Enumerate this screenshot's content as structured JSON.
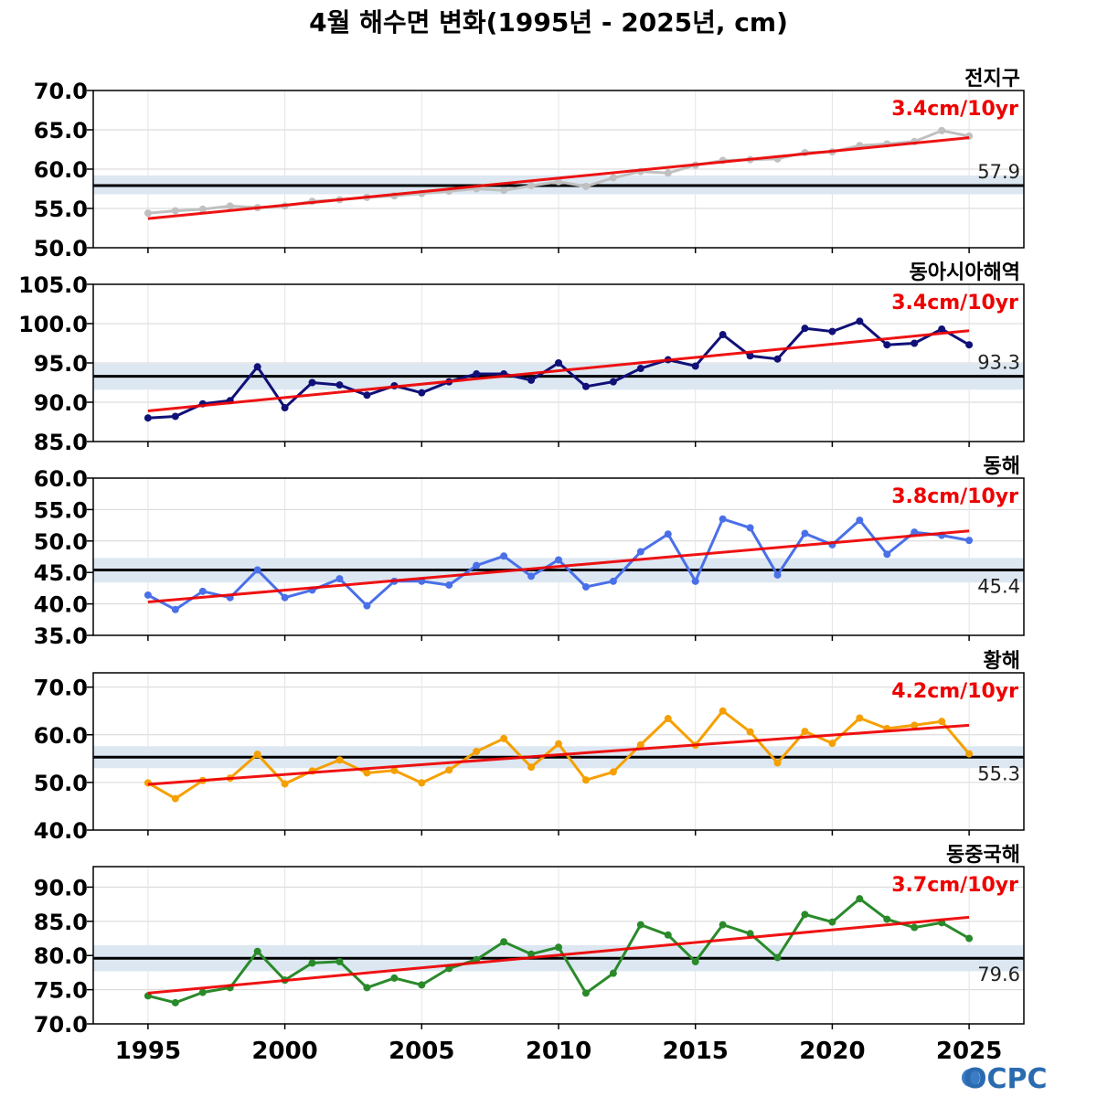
{
  "title": "4월 해수면 변화(1995년 - 2025년, cm)",
  "logo": "OCPC",
  "colors": {
    "trend": "#ee0000",
    "mean": "#000000",
    "band": "#dce7f2"
  },
  "chart_data": [
    {
      "type": "line",
      "name": "전지구",
      "trend_label": "3.4cm/10yr",
      "mean_label": "57.9",
      "mean": 57.9,
      "band": [
        56.8,
        59.2
      ],
      "color": "#c0c0c0",
      "ylim": [
        50,
        70
      ],
      "yticks": [
        50,
        55,
        60,
        65,
        70
      ],
      "ytick_labels": [
        "50.0",
        "55.0",
        "60.0",
        "65.0",
        "70.0"
      ],
      "trend": [
        53.7,
        64.0
      ],
      "x": [
        1995,
        1996,
        1997,
        1998,
        1999,
        2000,
        2001,
        2002,
        2003,
        2004,
        2005,
        2006,
        2007,
        2008,
        2009,
        2010,
        2011,
        2012,
        2013,
        2014,
        2015,
        2016,
        2017,
        2018,
        2019,
        2020,
        2021,
        2022,
        2023,
        2024,
        2025
      ],
      "values": [
        54.4,
        54.7,
        54.9,
        55.3,
        55.1,
        55.3,
        55.9,
        56.1,
        56.4,
        56.6,
        56.9,
        57.2,
        57.5,
        57.3,
        57.9,
        58.4,
        57.8,
        58.9,
        59.7,
        59.5,
        60.5,
        61.1,
        61.2,
        61.3,
        62.1,
        62.2,
        63.0,
        63.2,
        63.5,
        64.9,
        64.2
      ]
    },
    {
      "type": "line",
      "name": "동아시아해역",
      "trend_label": "3.4cm/10yr",
      "mean_label": "93.3",
      "mean": 93.3,
      "band": [
        91.6,
        94.9
      ],
      "color": "#101078",
      "ylim": [
        85,
        105
      ],
      "yticks": [
        85,
        90,
        95,
        100,
        105
      ],
      "ytick_labels": [
        "85.0",
        "90.0",
        "95.0",
        "100.0",
        "105.0"
      ],
      "trend": [
        88.9,
        99.1
      ],
      "x": [
        1995,
        1996,
        1997,
        1998,
        1999,
        2000,
        2001,
        2002,
        2003,
        2004,
        2005,
        2006,
        2007,
        2008,
        2009,
        2010,
        2011,
        2012,
        2013,
        2014,
        2015,
        2016,
        2017,
        2018,
        2019,
        2020,
        2021,
        2022,
        2023,
        2024,
        2025
      ],
      "values": [
        88.0,
        88.2,
        89.8,
        90.2,
        94.5,
        89.3,
        92.5,
        92.2,
        90.9,
        92.1,
        91.2,
        92.6,
        93.6,
        93.6,
        92.8,
        95.0,
        92.0,
        92.6,
        94.3,
        95.4,
        94.6,
        98.6,
        95.9,
        95.5,
        99.4,
        99.0,
        100.3,
        97.3,
        97.5,
        99.3,
        97.3
      ]
    },
    {
      "type": "line",
      "name": "동해",
      "trend_label": "3.8cm/10yr",
      "mean_label": "45.4",
      "mean": 45.4,
      "band": [
        43.4,
        47.3
      ],
      "color": "#4a70e8",
      "ylim": [
        35,
        60
      ],
      "yticks": [
        35,
        40,
        45,
        50,
        55,
        60
      ],
      "ytick_labels": [
        "35.0",
        "40.0",
        "45.0",
        "50.0",
        "55.0",
        "60.0"
      ],
      "trend": [
        40.3,
        51.6
      ],
      "x": [
        1995,
        1996,
        1997,
        1998,
        1999,
        2000,
        2001,
        2002,
        2003,
        2004,
        2005,
        2006,
        2007,
        2008,
        2009,
        2010,
        2011,
        2012,
        2013,
        2014,
        2015,
        2016,
        2017,
        2018,
        2019,
        2020,
        2021,
        2022,
        2023,
        2024,
        2025
      ],
      "values": [
        41.4,
        39.1,
        42.0,
        41.0,
        45.4,
        41.0,
        42.2,
        44.0,
        39.7,
        43.6,
        43.6,
        43.0,
        46.1,
        47.6,
        44.4,
        47.0,
        42.7,
        43.6,
        48.3,
        51.1,
        43.6,
        53.5,
        52.1,
        44.6,
        51.2,
        49.4,
        53.3,
        47.9,
        51.4,
        50.9,
        50.1
      ]
    },
    {
      "type": "line",
      "name": "황해",
      "trend_label": "4.2cm/10yr",
      "mean_label": "55.3",
      "mean": 55.3,
      "band": [
        53.0,
        57.6
      ],
      "color": "#f5a000",
      "ylim": [
        40,
        73
      ],
      "yticks": [
        40,
        50,
        60,
        70
      ],
      "ytick_labels": [
        "40.0",
        "50.0",
        "60.0",
        "70.0"
      ],
      "trend": [
        49.6,
        62.0
      ],
      "x": [
        1995,
        1996,
        1997,
        1998,
        1999,
        2000,
        2001,
        2002,
        2003,
        2004,
        2005,
        2006,
        2007,
        2008,
        2009,
        2010,
        2011,
        2012,
        2013,
        2014,
        2015,
        2016,
        2017,
        2018,
        2019,
        2020,
        2021,
        2022,
        2023,
        2024,
        2025
      ],
      "values": [
        49.9,
        46.6,
        50.4,
        50.9,
        55.9,
        49.7,
        52.4,
        54.7,
        52.0,
        52.5,
        49.9,
        52.6,
        56.5,
        59.2,
        53.2,
        58.1,
        50.5,
        52.2,
        57.9,
        63.4,
        57.8,
        65.0,
        60.6,
        54.1,
        60.7,
        58.2,
        63.5,
        61.3,
        62.0,
        62.8,
        56.0
      ]
    },
    {
      "type": "line",
      "name": "동중국해",
      "trend_label": "3.7cm/10yr",
      "mean_label": "79.6",
      "mean": 79.6,
      "band": [
        77.7,
        81.5
      ],
      "color": "#2a8a2a",
      "ylim": [
        70,
        93
      ],
      "yticks": [
        70,
        75,
        80,
        85,
        90
      ],
      "ytick_labels": [
        "70.0",
        "75.0",
        "80.0",
        "85.0",
        "90.0"
      ],
      "trend": [
        74.5,
        85.6
      ],
      "x": [
        1995,
        1996,
        1997,
        1998,
        1999,
        2000,
        2001,
        2002,
        2003,
        2004,
        2005,
        2006,
        2007,
        2008,
        2009,
        2010,
        2011,
        2012,
        2013,
        2014,
        2015,
        2016,
        2017,
        2018,
        2019,
        2020,
        2021,
        2022,
        2023,
        2024,
        2025
      ],
      "values": [
        74.1,
        73.1,
        74.6,
        75.3,
        80.6,
        76.4,
        78.9,
        79.1,
        75.3,
        76.7,
        75.7,
        78.1,
        79.4,
        82.0,
        80.2,
        81.2,
        74.5,
        77.4,
        84.5,
        83.0,
        79.1,
        84.5,
        83.2,
        79.7,
        86.0,
        84.9,
        88.3,
        85.3,
        84.1,
        84.8,
        82.5
      ]
    }
  ],
  "x_axis": {
    "xlim": [
      1993,
      2027
    ],
    "ticks": [
      1995,
      2000,
      2005,
      2010,
      2015,
      2020,
      2025
    ],
    "tick_labels": [
      "1995",
      "2000",
      "2005",
      "2010",
      "2015",
      "2020",
      "2025"
    ]
  }
}
